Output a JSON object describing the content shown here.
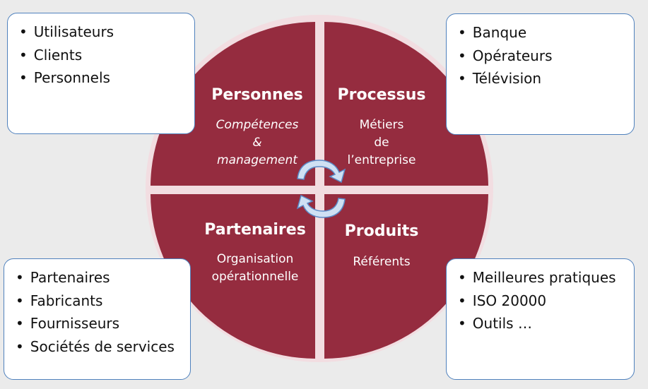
{
  "colors": {
    "quadrant_fill": "#952c3f",
    "box_border": "#4f81bd",
    "arrow_fill": "#cfe0f3",
    "arrow_stroke": "#5b8ac7",
    "background": "#ebebeb"
  },
  "quadrants": {
    "top_left": {
      "title": "Personnes",
      "subtitle": [
        "Compétences",
        "&",
        "management"
      ]
    },
    "top_right": {
      "title": "Processus",
      "subtitle": [
        "Métiers",
        "de",
        "l’entreprise"
      ]
    },
    "bottom_left": {
      "title": "Partenaires",
      "subtitle": [
        "Organisation",
        "opérationnelle"
      ]
    },
    "bottom_right": {
      "title": "Produits",
      "subtitle": [
        "Référents"
      ]
    }
  },
  "boxes": {
    "top_left": [
      "Utilisateurs",
      "Clients",
      "Personnels"
    ],
    "top_right": [
      "Banque",
      "Opérateurs",
      "Télévision"
    ],
    "bottom_left": [
      "Partenaires",
      "Fabricants",
      "Fournisseurs",
      "Sociétés de services"
    ],
    "bottom_right": [
      "Meilleures pratiques",
      "ISO 20000",
      "Outils …"
    ]
  },
  "icons": {
    "cycle_arrows": "circular-arrows-icon"
  }
}
